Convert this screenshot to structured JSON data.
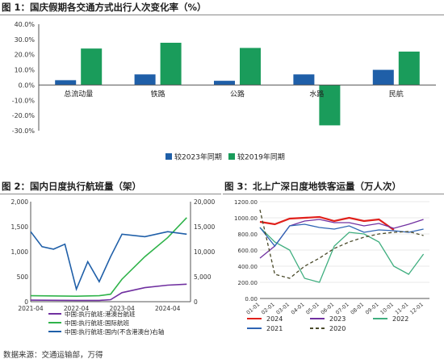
{
  "chart_data": [
    {
      "type": "bar",
      "title": "图 1：国庆假期各交通方式出行人次变化率（%）",
      "categories": [
        "总流动量",
        "铁路",
        "公路",
        "水路",
        "民航"
      ],
      "series": [
        {
          "name": "较2023年同期",
          "color": "#1f5fa8",
          "values": [
            3.2,
            7.0,
            2.8,
            7.0,
            10.0
          ]
        },
        {
          "name": "较2019年同期",
          "color": "#1a9c5b",
          "values": [
            24.0,
            27.8,
            24.4,
            -26.5,
            22.0
          ]
        }
      ],
      "y_ticks": [
        "40.0%",
        "30.0%",
        "20.0%",
        "10.0%",
        "0.0%",
        "-10.0%",
        "-20.0%",
        "-30.0%"
      ],
      "ylim": [
        -30,
        40
      ],
      "legend_position": "bottom"
    },
    {
      "type": "line",
      "title": "图 2：国内日度执行航班量（架）",
      "x_ticks": [
        "2021-04",
        "2022-04",
        "2023-04",
        "2024-04"
      ],
      "y_left_ticks": [
        "2,000",
        "1,500",
        "1,000",
        "500",
        "0"
      ],
      "y_right_ticks": [
        "20,000",
        "15,000",
        "10,000",
        "5,000",
        "0"
      ],
      "ylim_left": [
        0,
        2000
      ],
      "ylim_right": [
        0,
        20000
      ],
      "series": [
        {
          "name": "中国:执行航班:港澳台航班",
          "axis": "left",
          "color": "#7030a0",
          "x": [
            "2021-04",
            "2022-04",
            "2022-10",
            "2023-01",
            "2023-04",
            "2023-10",
            "2024-04",
            "2024-09"
          ],
          "values": [
            30,
            25,
            25,
            40,
            180,
            280,
            330,
            350
          ]
        },
        {
          "name": "中国:执行航班:国际航班",
          "axis": "left",
          "color": "#2fb34a",
          "x": [
            "2021-04",
            "2022-04",
            "2022-10",
            "2023-01",
            "2023-04",
            "2023-10",
            "2024-04",
            "2024-09"
          ],
          "values": [
            120,
            110,
            120,
            150,
            450,
            900,
            1280,
            1680
          ]
        },
        {
          "name": "中国:执行航班:国内(不含港澳台)右轴",
          "axis": "right",
          "color": "#1f5fa8",
          "x": [
            "2021-04",
            "2021-07",
            "2021-10",
            "2022-01",
            "2022-04",
            "2022-07",
            "2022-10",
            "2023-01",
            "2023-04",
            "2023-10",
            "2024-04",
            "2024-09"
          ],
          "values": [
            14000,
            11000,
            10500,
            11500,
            2500,
            8000,
            4000,
            9000,
            13500,
            13000,
            14000,
            13500
          ]
        }
      ],
      "legend_position": "bottom"
    },
    {
      "type": "line",
      "title": "图 3：北上广深日度地铁客运量（万人次）",
      "x_ticks": [
        "01-01",
        "02-01",
        "03-01",
        "04-01",
        "05-01",
        "06-01",
        "07-01",
        "08-01",
        "09-01",
        "10-01",
        "11-01",
        "12-01"
      ],
      "y_ticks": [
        "1200.00",
        "1000.00",
        "800.00",
        "600.00",
        "400.00",
        "200.00",
        "0.00"
      ],
      "ylim": [
        0,
        1200
      ],
      "series": [
        {
          "name": "2024",
          "color": "#e0201b",
          "style": "solid",
          "x": [
            1,
            2,
            3,
            4,
            5,
            6,
            7,
            8,
            9,
            10
          ],
          "values": [
            950,
            920,
            990,
            1000,
            1010,
            960,
            1000,
            960,
            980,
            850
          ]
        },
        {
          "name": "2023",
          "color": "#7030a0",
          "style": "solid",
          "x": [
            1,
            2,
            3,
            4,
            5,
            6,
            7,
            8,
            9,
            10,
            11,
            12
          ],
          "values": [
            500,
            650,
            900,
            960,
            980,
            940,
            940,
            900,
            930,
            870,
            920,
            980
          ]
        },
        {
          "name": "2022",
          "color": "#3fae7f",
          "style": "solid",
          "x": [
            1,
            2,
            3,
            4,
            5,
            6,
            7,
            8,
            9,
            10,
            11,
            12
          ],
          "values": [
            880,
            700,
            600,
            250,
            200,
            650,
            820,
            800,
            700,
            400,
            300,
            550
          ]
        },
        {
          "name": "2021",
          "color": "#2e64b4",
          "style": "solid",
          "x": [
            1,
            2,
            3,
            4,
            5,
            6,
            7,
            8,
            9,
            10,
            11,
            12
          ],
          "values": [
            880,
            650,
            900,
            920,
            880,
            860,
            900,
            820,
            850,
            840,
            820,
            860
          ]
        },
        {
          "name": "2020",
          "color": "#4a4a2a",
          "style": "dashed",
          "x": [
            1,
            2,
            3,
            4,
            5,
            6,
            7,
            8,
            9,
            10,
            11,
            12
          ],
          "values": [
            1100,
            300,
            250,
            400,
            500,
            620,
            700,
            760,
            800,
            820,
            830,
            780
          ]
        }
      ],
      "legend_position": "bottom"
    }
  ],
  "source_note": "数据来源：交通运输部，万得"
}
